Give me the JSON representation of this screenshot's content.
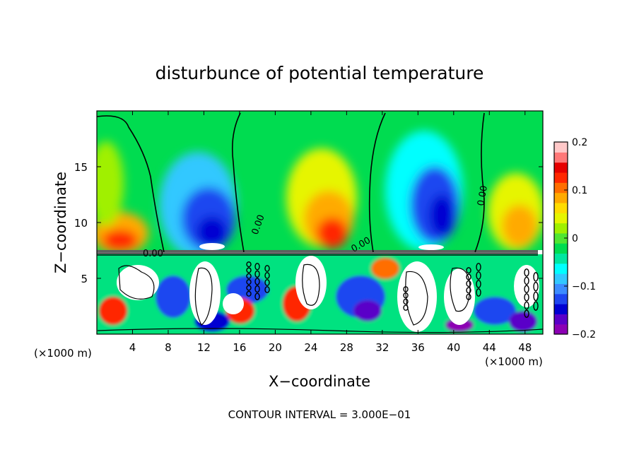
{
  "chart_data": {
    "type": "heatmap",
    "title": "disturbunce of potential temperature",
    "xlabel": "X−coordinate",
    "ylabel": "Z−coordinate",
    "x_unit_left": "(×1000 m)",
    "x_unit_right": "(×1000 m)",
    "footer": "CONTOUR INTERVAL = 3.000E−01",
    "xlim": [
      0,
      50
    ],
    "ylim": [
      0,
      20
    ],
    "x_ticks": [
      4,
      8,
      12,
      16,
      20,
      24,
      28,
      32,
      36,
      40,
      44,
      48
    ],
    "x_tick_labels": [
      "4",
      "8",
      "12",
      "16",
      "20",
      "24",
      "28",
      "32",
      "36",
      "40",
      "44",
      "48"
    ],
    "y_ticks": [
      5,
      10,
      15
    ],
    "y_tick_labels": [
      "5",
      "10",
      "15"
    ],
    "colorbar": {
      "range": [
        -0.2,
        0.2
      ],
      "ticks": [
        0.2,
        0.1,
        0,
        -0.1,
        -0.2
      ],
      "tick_labels": [
        "0.2",
        "0.1",
        "0",
        "−0.1",
        "−0.2"
      ],
      "colors": [
        "#8c00b4",
        "#5a00c8",
        "#0000d2",
        "#1e46f0",
        "#3c8cff",
        "#32c8ff",
        "#00ffff",
        "#00e6a0",
        "#00dc50",
        "#50e632",
        "#a0f000",
        "#e6f500",
        "#ffdc00",
        "#ffaa00",
        "#ff6e00",
        "#ff2800",
        "#e60000",
        "#ff7878",
        "#ffc8c8"
      ]
    },
    "contour_label": "0.00",
    "grid": false,
    "legend": "colorbar-right"
  },
  "colors": {
    "background": "#ffffff",
    "mean_field": "#00dc50"
  }
}
